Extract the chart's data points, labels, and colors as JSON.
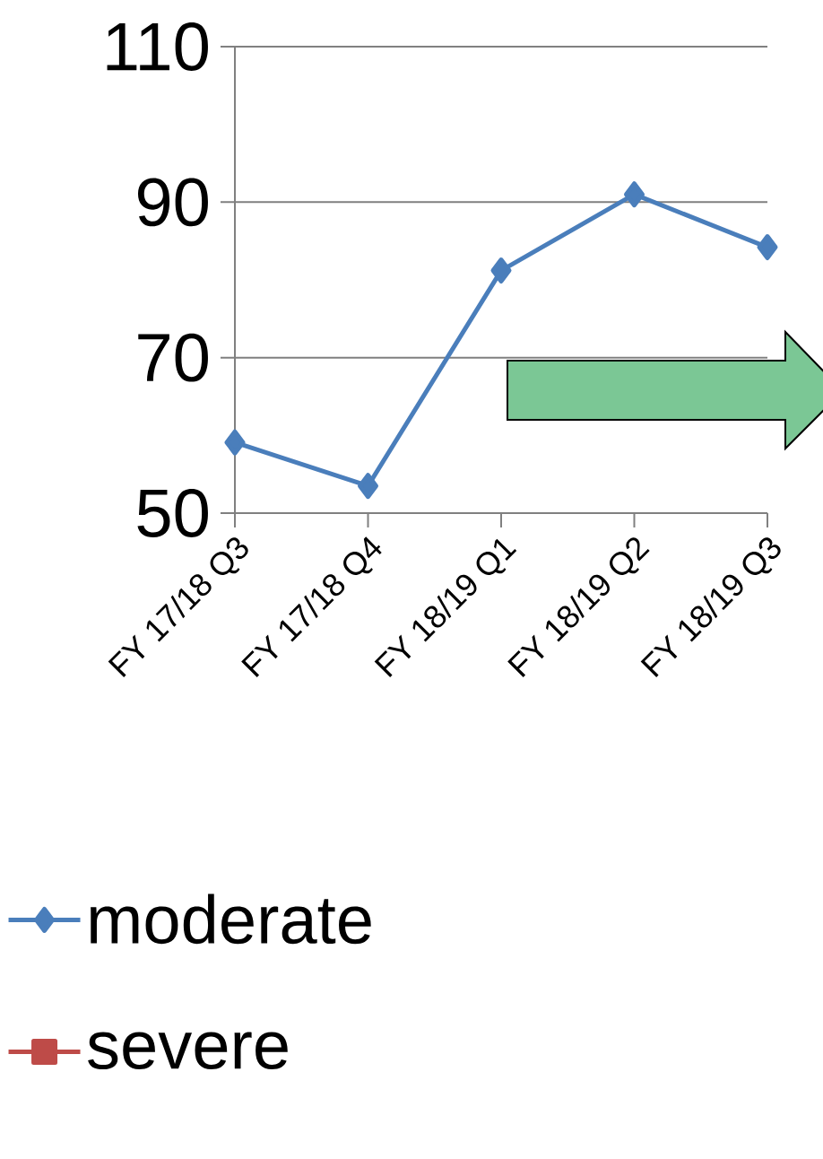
{
  "chart_data": {
    "type": "line",
    "categories": [
      "FY 17/18 Q3",
      "FY 17/18 Q4",
      "FY 18/19 Q1",
      "FY 18/19 Q2",
      "FY 18/19 Q3"
    ],
    "series": [
      {
        "name": "moderate",
        "color": "#4a7ebb",
        "marker": "diamond",
        "values": [
          59.1,
          53.5,
          81.2,
          91.0,
          84.2
        ]
      },
      {
        "name": "severe",
        "color": "#be4b48",
        "marker": "square",
        "values": [
          null,
          null,
          null,
          null,
          null
        ]
      }
    ],
    "ylim": [
      50,
      110
    ],
    "yticks": [
      50,
      70,
      90,
      110
    ],
    "grid": "y",
    "legend": "bottom"
  }
}
